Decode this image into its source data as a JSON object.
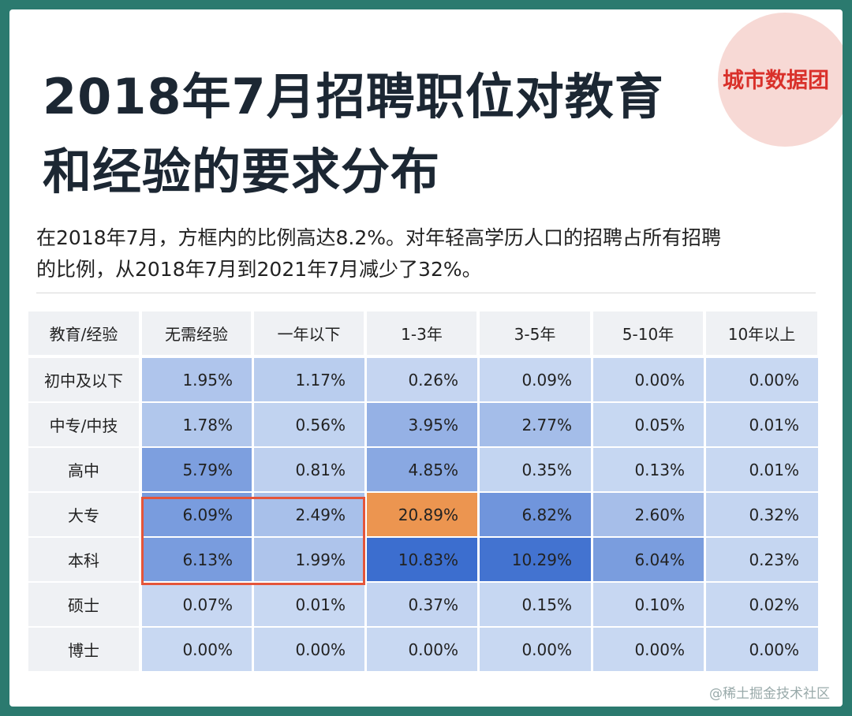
{
  "header": {
    "title": [
      "2018年7月招聘职位对教育",
      "和经验的要求分布"
    ],
    "logo": "城市数据团",
    "subtitle": [
      "在2018年7月，方框内的比例高达8.2%。对年轻高学历人口的招聘占所有招聘",
      "的比例，从2018年7月到2021年7月减少了32%。"
    ]
  },
  "table": {
    "columns": [
      "教育/经验",
      "无需经验",
      "一年以下",
      "1-3年",
      "3-5年",
      "5-10年",
      "10年以上"
    ],
    "rows": [
      [
        "初中及以下",
        "1.95%",
        "1.17%",
        "0.26%",
        "0.09%",
        "0.00%",
        "0.00%"
      ],
      [
        "中专/中技",
        "1.78%",
        "0.56%",
        "3.95%",
        "2.77%",
        "0.05%",
        "0.01%"
      ],
      [
        "高中",
        "5.79%",
        "0.81%",
        "4.85%",
        "0.35%",
        "0.13%",
        "0.01%"
      ],
      [
        "大专",
        "6.09%",
        "2.49%",
        "20.89%",
        "6.82%",
        "2.60%",
        "0.32%"
      ],
      [
        "本科",
        "6.13%",
        "1.99%",
        "10.83%",
        "10.29%",
        "6.04%",
        "0.23%"
      ],
      [
        "硕士",
        "0.07%",
        "0.01%",
        "0.37%",
        "0.15%",
        "0.10%",
        "0.02%"
      ],
      [
        "博士",
        "0.00%",
        "0.00%",
        "0.00%",
        "0.00%",
        "0.00%",
        "0.00%"
      ]
    ]
  },
  "footer": {
    "watermark": "@稀土掘金技术社区"
  }
}
